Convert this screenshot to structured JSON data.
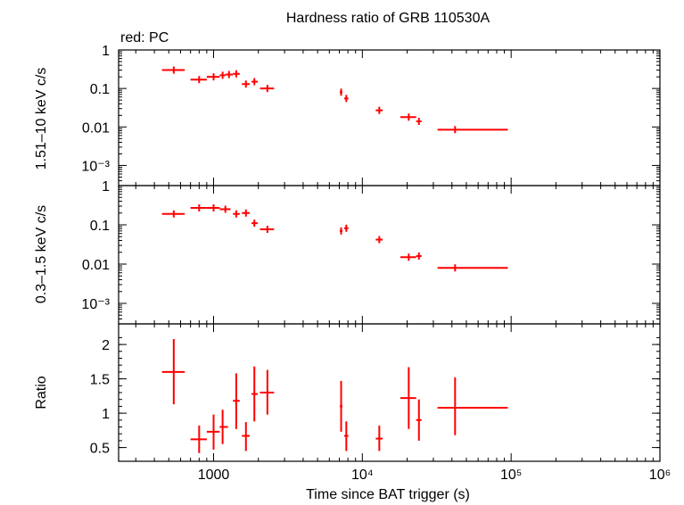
{
  "chart_data": [
    {
      "type": "scatter",
      "title": "Hardness ratio of GRB 110530A",
      "annotation": "red: PC",
      "ylabel": "1.51–10 keV c/s",
      "yscale": "log",
      "ylim": [
        0.0003,
        1
      ],
      "yticks": [
        "1",
        "0.1",
        "0.01",
        "10⁻³"
      ],
      "xscale": "log",
      "xlim": [
        230,
        1000000
      ],
      "series": [
        {
          "color": "#ff0000",
          "points": [
            {
              "x": 540,
              "xlo": 450,
              "xhi": 640,
              "y": 0.3
            },
            {
              "x": 800,
              "xlo": 700,
              "xhi": 900,
              "y": 0.17
            },
            {
              "x": 1000,
              "xlo": 900,
              "xhi": 1100,
              "y": 0.2
            },
            {
              "x": 1150,
              "xlo": 1100,
              "xhi": 1200,
              "y": 0.22
            },
            {
              "x": 1270,
              "xlo": 1200,
              "xhi": 1350,
              "y": 0.23
            },
            {
              "x": 1420,
              "xlo": 1350,
              "xhi": 1500,
              "y": 0.24
            },
            {
              "x": 1650,
              "xlo": 1550,
              "xhi": 1750,
              "y": 0.13
            },
            {
              "x": 1880,
              "xlo": 1800,
              "xhi": 1980,
              "y": 0.15
            },
            {
              "x": 2300,
              "xlo": 2050,
              "xhi": 2550,
              "y": 0.1
            },
            {
              "x": 7200,
              "xlo": 7050,
              "xhi": 7350,
              "y": 0.08
            },
            {
              "x": 7800,
              "xlo": 7550,
              "xhi": 8050,
              "y": 0.055
            },
            {
              "x": 13000,
              "xlo": 12300,
              "xhi": 13700,
              "y": 0.027
            },
            {
              "x": 20500,
              "xlo": 18000,
              "xhi": 23000,
              "y": 0.018
            },
            {
              "x": 24000,
              "xlo": 23000,
              "xhi": 25000,
              "y": 0.014
            },
            {
              "x": 42000,
              "xlo": 32000,
              "xhi": 95000,
              "y": 0.0085
            }
          ]
        }
      ]
    },
    {
      "type": "scatter",
      "ylabel": "0.3–1.5 keV c/s",
      "yscale": "log",
      "ylim": [
        0.0003,
        1
      ],
      "yticks": [
        "1",
        "0.1",
        "0.01",
        "10⁻³"
      ],
      "xscale": "log",
      "xlim": [
        230,
        1000000
      ],
      "series": [
        {
          "color": "#ff0000",
          "points": [
            {
              "x": 540,
              "xlo": 450,
              "xhi": 640,
              "y": 0.19
            },
            {
              "x": 800,
              "xlo": 700,
              "xhi": 900,
              "y": 0.27
            },
            {
              "x": 1000,
              "xlo": 900,
              "xhi": 1100,
              "y": 0.27
            },
            {
              "x": 1200,
              "xlo": 1100,
              "xhi": 1300,
              "y": 0.25
            },
            {
              "x": 1420,
              "xlo": 1350,
              "xhi": 1500,
              "y": 0.19
            },
            {
              "x": 1650,
              "xlo": 1550,
              "xhi": 1750,
              "y": 0.2
            },
            {
              "x": 1880,
              "xlo": 1800,
              "xhi": 1980,
              "y": 0.11
            },
            {
              "x": 2300,
              "xlo": 2050,
              "xhi": 2550,
              "y": 0.077
            },
            {
              "x": 7200,
              "xlo": 7050,
              "xhi": 7350,
              "y": 0.07
            },
            {
              "x": 7800,
              "xlo": 7550,
              "xhi": 8050,
              "y": 0.082
            },
            {
              "x": 13000,
              "xlo": 12300,
              "xhi": 13700,
              "y": 0.042
            },
            {
              "x": 20500,
              "xlo": 18000,
              "xhi": 23000,
              "y": 0.015
            },
            {
              "x": 24000,
              "xlo": 23000,
              "xhi": 25000,
              "y": 0.016
            },
            {
              "x": 42000,
              "xlo": 32000,
              "xhi": 95000,
              "y": 0.008
            }
          ]
        }
      ]
    },
    {
      "type": "scatter",
      "ylabel": "Ratio",
      "xlabel": "Time since BAT trigger (s)",
      "yscale": "linear",
      "ylim": [
        0.3,
        2.3
      ],
      "yticks": [
        "2",
        "1.5",
        "1",
        "0.5"
      ],
      "ytick_values": [
        2,
        1.5,
        1,
        0.5
      ],
      "xscale": "log",
      "xlim": [
        230,
        1000000
      ],
      "xticks": [
        "1000",
        "10⁴",
        "10⁵",
        "10⁶"
      ],
      "xtick_values": [
        1000,
        10000,
        100000,
        1000000
      ],
      "series": [
        {
          "color": "#ff0000",
          "points": [
            {
              "x": 540,
              "xlo": 450,
              "xhi": 640,
              "y": 1.6,
              "ylo": 1.13,
              "yhi": 2.08
            },
            {
              "x": 800,
              "xlo": 700,
              "xhi": 900,
              "y": 0.62,
              "ylo": 0.42,
              "yhi": 0.82
            },
            {
              "x": 1000,
              "xlo": 900,
              "xhi": 1100,
              "y": 0.73,
              "ylo": 0.47,
              "yhi": 0.98
            },
            {
              "x": 1150,
              "xlo": 1100,
              "xhi": 1250,
              "y": 0.8,
              "ylo": 0.55,
              "yhi": 1.05
            },
            {
              "x": 1420,
              "xlo": 1350,
              "xhi": 1500,
              "y": 1.18,
              "ylo": 0.77,
              "yhi": 1.58
            },
            {
              "x": 1650,
              "xlo": 1550,
              "xhi": 1750,
              "y": 0.67,
              "ylo": 0.45,
              "yhi": 0.87
            },
            {
              "x": 1880,
              "xlo": 1800,
              "xhi": 1980,
              "y": 1.28,
              "ylo": 0.88,
              "yhi": 1.68
            },
            {
              "x": 2300,
              "xlo": 2050,
              "xhi": 2550,
              "y": 1.3,
              "ylo": 0.98,
              "yhi": 1.63
            },
            {
              "x": 7200,
              "xlo": 7050,
              "xhi": 7350,
              "y": 1.1,
              "ylo": 0.73,
              "yhi": 1.47
            },
            {
              "x": 7800,
              "xlo": 7550,
              "xhi": 8050,
              "y": 0.67,
              "ylo": 0.45,
              "yhi": 0.88
            },
            {
              "x": 13000,
              "xlo": 12300,
              "xhi": 13700,
              "y": 0.63,
              "ylo": 0.45,
              "yhi": 0.82
            },
            {
              "x": 20500,
              "xlo": 18000,
              "xhi": 23000,
              "y": 1.22,
              "ylo": 0.77,
              "yhi": 1.67
            },
            {
              "x": 24000,
              "xlo": 23000,
              "xhi": 25000,
              "y": 0.9,
              "ylo": 0.6,
              "yhi": 1.2
            },
            {
              "x": 42000,
              "xlo": 32000,
              "xhi": 95000,
              "y": 1.08,
              "ylo": 0.68,
              "yhi": 1.52
            }
          ]
        }
      ]
    }
  ]
}
